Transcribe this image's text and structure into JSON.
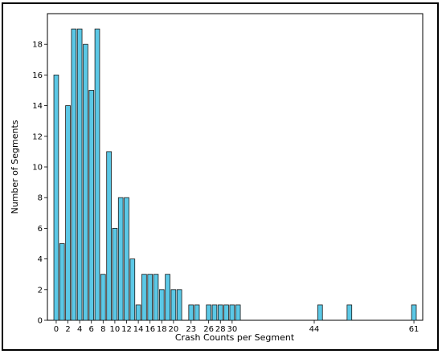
{
  "chart_data": {
    "type": "bar",
    "title": "",
    "xlabel": "Crash Counts per Segment",
    "ylabel": "Number of Segments",
    "bar_color": "#5bc8e6",
    "edge_color": "#1a1a1a",
    "xlim": [
      -1.5,
      62.5
    ],
    "ylim": [
      0,
      20
    ],
    "xticks": [
      0,
      2,
      4,
      6,
      8,
      10,
      12,
      14,
      16,
      18,
      20,
      23,
      26,
      28,
      30,
      44,
      61
    ],
    "yticks": [
      0,
      2,
      4,
      6,
      8,
      10,
      12,
      14,
      16,
      18
    ],
    "grid": false,
    "x": [
      0,
      1,
      2,
      3,
      4,
      5,
      6,
      7,
      8,
      9,
      10,
      11,
      12,
      13,
      14,
      15,
      16,
      17,
      18,
      19,
      20,
      21,
      23,
      24,
      26,
      27,
      28,
      29,
      30,
      31,
      45,
      50,
      61
    ],
    "values": [
      16,
      5,
      14,
      19,
      19,
      18,
      15,
      19,
      3,
      11,
      6,
      8,
      8,
      4,
      1,
      3,
      3,
      3,
      2,
      3,
      2,
      2,
      1,
      1,
      1,
      1,
      1,
      1,
      1,
      1,
      1,
      1,
      1
    ]
  }
}
